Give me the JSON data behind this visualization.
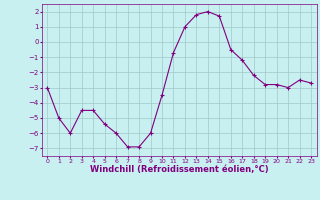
{
  "x": [
    0,
    1,
    2,
    3,
    4,
    5,
    6,
    7,
    8,
    9,
    10,
    11,
    12,
    13,
    14,
    15,
    16,
    17,
    18,
    19,
    20,
    21,
    22,
    23
  ],
  "y": [
    -3.0,
    -5.0,
    -6.0,
    -4.5,
    -4.5,
    -5.4,
    -6.0,
    -6.9,
    -6.9,
    -6.0,
    -3.5,
    -0.7,
    1.0,
    1.8,
    2.0,
    1.7,
    -0.5,
    -1.2,
    -2.2,
    -2.8,
    -2.8,
    -3.0,
    -2.5,
    -2.7
  ],
  "line_color": "#800080",
  "marker": "+",
  "marker_size": 3,
  "bg_color": "#c8f0f0",
  "grid_color": "#a0c8c8",
  "axis_color": "#800080",
  "tick_color": "#800080",
  "xlabel": "Windchill (Refroidissement éolien,°C)",
  "xlabel_fontsize": 6.0,
  "xlim": [
    -0.5,
    23.5
  ],
  "ylim": [
    -7.5,
    2.5
  ],
  "yticks": [
    2,
    1,
    0,
    -1,
    -2,
    -3,
    -4,
    -5,
    -6,
    -7
  ],
  "xticks": [
    0,
    1,
    2,
    3,
    4,
    5,
    6,
    7,
    8,
    9,
    10,
    11,
    12,
    13,
    14,
    15,
    16,
    17,
    18,
    19,
    20,
    21,
    22,
    23
  ]
}
